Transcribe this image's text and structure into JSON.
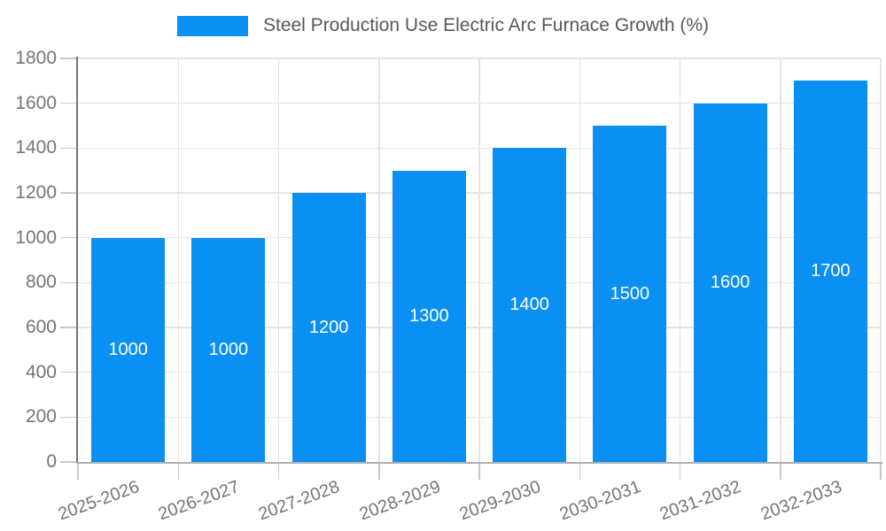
{
  "legend": {
    "label": "Steel Production Use Electric Arc Furnace Growth (%)"
  },
  "chart_data": {
    "type": "bar",
    "title": "Steel Production Use Electric Arc Furnace Growth (%)",
    "categories": [
      "2025-2026",
      "2026-2027",
      "2027-2028",
      "2028-2029",
      "2029-2030",
      "2030-2031",
      "2031-2032",
      "2032-2033"
    ],
    "values": [
      1000,
      1000,
      1200,
      1300,
      1400,
      1500,
      1600,
      1700
    ],
    "bar_labels": [
      "1000",
      "1000",
      "1200",
      "1300",
      "1400",
      "1500",
      "1600",
      "1700"
    ],
    "xlabel": "",
    "ylabel": "",
    "ylim": [
      0,
      1800
    ],
    "ytick_step": 200,
    "ytick_labels": [
      "0",
      "200",
      "400",
      "600",
      "800",
      "1000",
      "1200",
      "1400",
      "1600",
      "1800"
    ],
    "grid": true,
    "legend_position": "top-center",
    "colors": {
      "bar": "#0a90f3",
      "grid": "#e4e4e4",
      "tick": "#c9c9c9",
      "y_axis": "#757575",
      "x_axis": "#b0b0b0",
      "axis_label": "#757575",
      "bar_label": "#ffffff",
      "legend_text": "#57585a"
    }
  }
}
